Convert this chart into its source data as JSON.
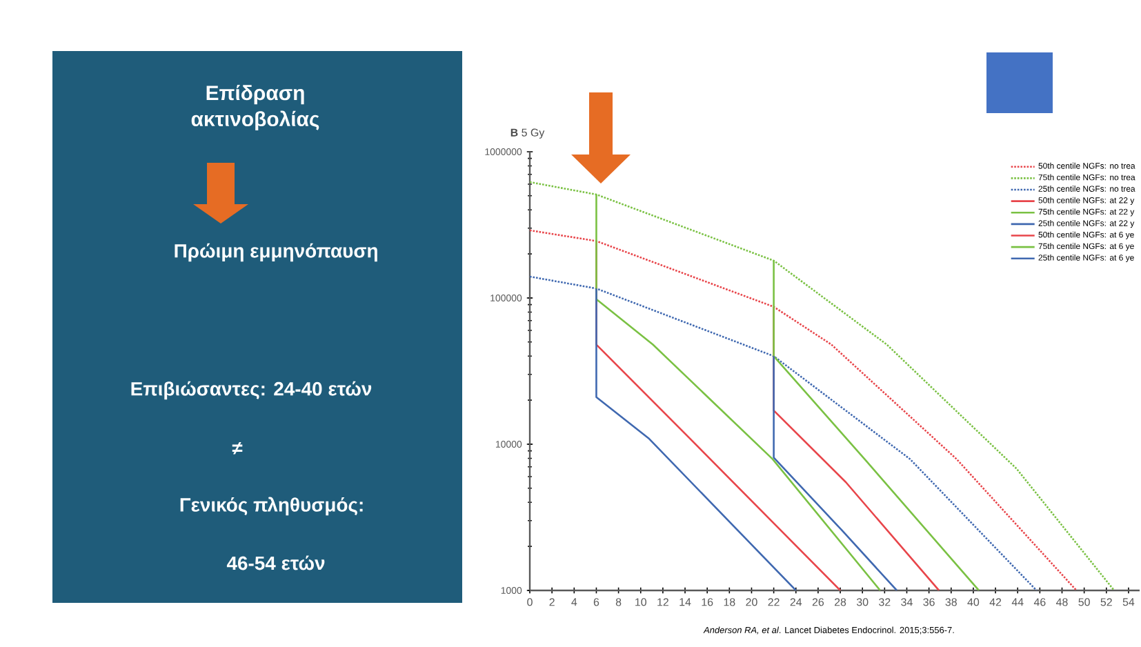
{
  "chart_data": [
    {
      "type": "other",
      "title": "Επίδραση ακτινοβολίας",
      "annotations": [
        "Πρώιμη εμμηνόπαυση",
        "Επιβιώσαντες: 24-40 ετών",
        "≠",
        "Γενικός πληθυσμός:",
        "46-54 ετών"
      ]
    },
    {
      "type": "line",
      "title": "**B** 5 Gy",
      "log": "y",
      "legend": "top right",
      "marker": "none",
      "xlim": [
        0,
        55
      ],
      "xticks": [
        0,
        2,
        4,
        6,
        8,
        10,
        12,
        14,
        16,
        18,
        20,
        22,
        24,
        26,
        28,
        30,
        32,
        34,
        36,
        38,
        40,
        42,
        44,
        46,
        48,
        50,
        52,
        54
      ],
      "ylim": [
        1000,
        1000000
      ],
      "yticks": [
        1000,
        10000,
        100000,
        1000000
      ],
      "annotations": [
        "*Anderson RA, et al*. Lancet Diabetes Endocrinol. 2015;3:556-7."
      ],
      "series": [
        {
          "name": "50th centile NGFs: no trea",
          "color": "#e8454a",
          "line_style": "dotted",
          "x": [
            0,
            6,
            22,
            27.2,
            38.5,
            49.3
          ],
          "values": [
            290000,
            245000,
            87000,
            48000,
            7900,
            1000
          ]
        },
        {
          "name": "75th centile NGFs: no trea",
          "color": "#7ac143",
          "line_style": "dotted",
          "x": [
            0,
            6,
            22,
            32.2,
            43.9,
            52.7
          ],
          "values": [
            620000,
            510000,
            180000,
            48000,
            6800,
            1000
          ]
        },
        {
          "name": "25th centile NGFs: no trea",
          "color": "#3f68b0",
          "line_style": "dotted",
          "x": [
            0,
            6,
            22,
            34.3,
            45.7
          ],
          "values": [
            140000,
            116000,
            40000,
            7900,
            1000
          ]
        },
        {
          "name": "50th centile NGFs: at 22 y",
          "color": "#e8454a",
          "line_style": "solid",
          "x": [
            22,
            22,
            28.5,
            36.9
          ],
          "values": [
            87000,
            17000,
            5500,
            1000
          ]
        },
        {
          "name": "75th centile NGFs: at 22 y",
          "color": "#7ac143",
          "line_style": "solid",
          "x": [
            22,
            22,
            30.2,
            40.5
          ],
          "values": [
            180000,
            40000,
            7900,
            1000
          ]
        },
        {
          "name": "25th centile NGFs: at 22 y",
          "color": "#3f68b0",
          "line_style": "solid",
          "x": [
            22,
            22,
            28.1,
            33.1
          ],
          "values": [
            40000,
            8100,
            2600,
            1000
          ]
        },
        {
          "name": "50th centile NGFs: at 6 ye",
          "color": "#e8454a",
          "line_style": "solid",
          "x": [
            6,
            6,
            14.4,
            28
          ],
          "values": [
            245000,
            48000,
            11000,
            1000
          ]
        },
        {
          "name": "75th centile NGFs: at 6 ye",
          "color": "#7ac143",
          "line_style": "solid",
          "x": [
            6,
            6,
            11.1,
            21.9,
            31.6
          ],
          "values": [
            510000,
            98000,
            48000,
            7900,
            1000
          ]
        },
        {
          "name": "25th centile NGFs: at 6 ye",
          "color": "#3f68b0",
          "line_style": "solid",
          "x": [
            6,
            6,
            10.7,
            24
          ],
          "values": [
            116000,
            21000,
            11000,
            1000
          ]
        }
      ]
    }
  ]
}
